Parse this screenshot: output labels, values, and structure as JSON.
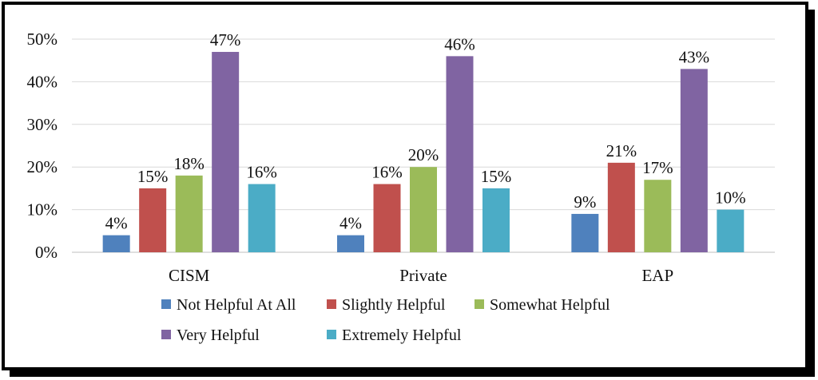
{
  "chart_data": {
    "type": "bar",
    "categories": [
      "CISM",
      "Private",
      "EAP"
    ],
    "series": [
      {
        "name": "Not Helpful At All",
        "color": "#4f81bd",
        "values": [
          4,
          4,
          9
        ],
        "labels": [
          "4%",
          "4%",
          "9%"
        ]
      },
      {
        "name": "Slightly Helpful",
        "color": "#c0504d",
        "values": [
          15,
          16,
          21
        ],
        "labels": [
          "15%",
          "16%",
          "21%"
        ]
      },
      {
        "name": "Somewhat Helpful",
        "color": "#9bbb59",
        "values": [
          18,
          20,
          17
        ],
        "labels": [
          "18%",
          "20%",
          "17%"
        ]
      },
      {
        "name": "Very Helpful",
        "color": "#8064a2",
        "values": [
          47,
          46,
          43
        ],
        "labels": [
          "47%",
          "46%",
          "43%"
        ]
      },
      {
        "name": "Extremely Helpful",
        "color": "#4bacc6",
        "values": [
          16,
          15,
          10
        ],
        "labels": [
          "16%",
          "15%",
          "10%"
        ]
      }
    ],
    "ylim": [
      0,
      50
    ],
    "yticks": [
      "0%",
      "10%",
      "20%",
      "30%",
      "40%",
      "50%"
    ],
    "grid": true,
    "legend": "bottom"
  }
}
